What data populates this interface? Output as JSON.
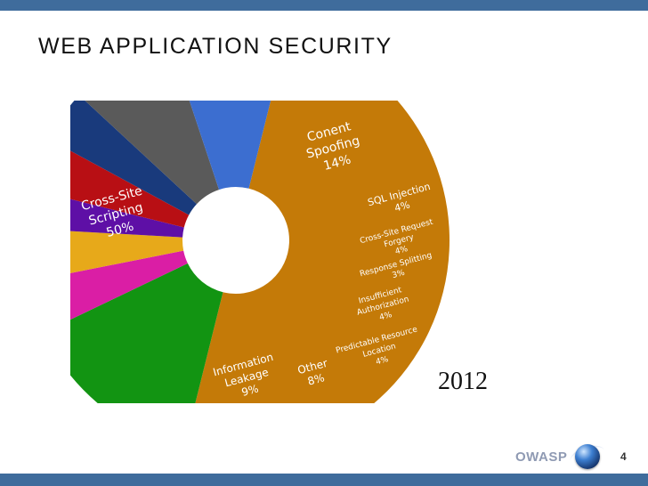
{
  "slide": {
    "title": "WEB APPLICATION SECURITY",
    "year": "2012",
    "brand": "OWASP",
    "page_number": "4"
  },
  "colors": {
    "bar": "#3f6c9c",
    "brand_text": "#8f9ab3"
  },
  "chart_data": {
    "type": "pie",
    "style": "donut",
    "series": [
      {
        "values": [
          50,
          14,
          4,
          4,
          3,
          4,
          4,
          8,
          9
        ],
        "categories": [
          "Cross-Site Scripting",
          "Conent Spoofing",
          "SQL Injection",
          "Cross-Site Request Forgery",
          "Response Splitting",
          "Insufficient Authorization",
          "Predictable Resource Location",
          "Other",
          "Information Leakage"
        ]
      }
    ],
    "slices": [
      {
        "label_lines": [
          "Cross-Site",
          "Scripting",
          "50%"
        ],
        "value": 50,
        "color": "#c47a08"
      },
      {
        "label_lines": [
          "Conent",
          "Spoofing",
          "14%"
        ],
        "value": 14,
        "color": "#129412"
      },
      {
        "label_lines": [
          "SQL Injection",
          "4%"
        ],
        "value": 4,
        "color": "#da1ea5"
      },
      {
        "label_lines": [
          "Cross-Site Request",
          "Forgery",
          "4%"
        ],
        "value": 4,
        "color": "#e7a91a"
      },
      {
        "label_lines": [
          "Response Splitting",
          "3%"
        ],
        "value": 3,
        "color": "#5e0fa6"
      },
      {
        "label_lines": [
          "Insufficient",
          "Authorization",
          "4%"
        ],
        "value": 4,
        "color": "#b80f14"
      },
      {
        "label_lines": [
          "Predictable Resource",
          "Location",
          "4%"
        ],
        "value": 4,
        "color": "#193a7c"
      },
      {
        "label_lines": [
          "Other",
          "8%"
        ],
        "value": 8,
        "color": "#5a5a5a"
      },
      {
        "label_lines": [
          "Information",
          "Leakage",
          "9%"
        ],
        "value": 9,
        "color": "#3c6ed0"
      }
    ]
  }
}
